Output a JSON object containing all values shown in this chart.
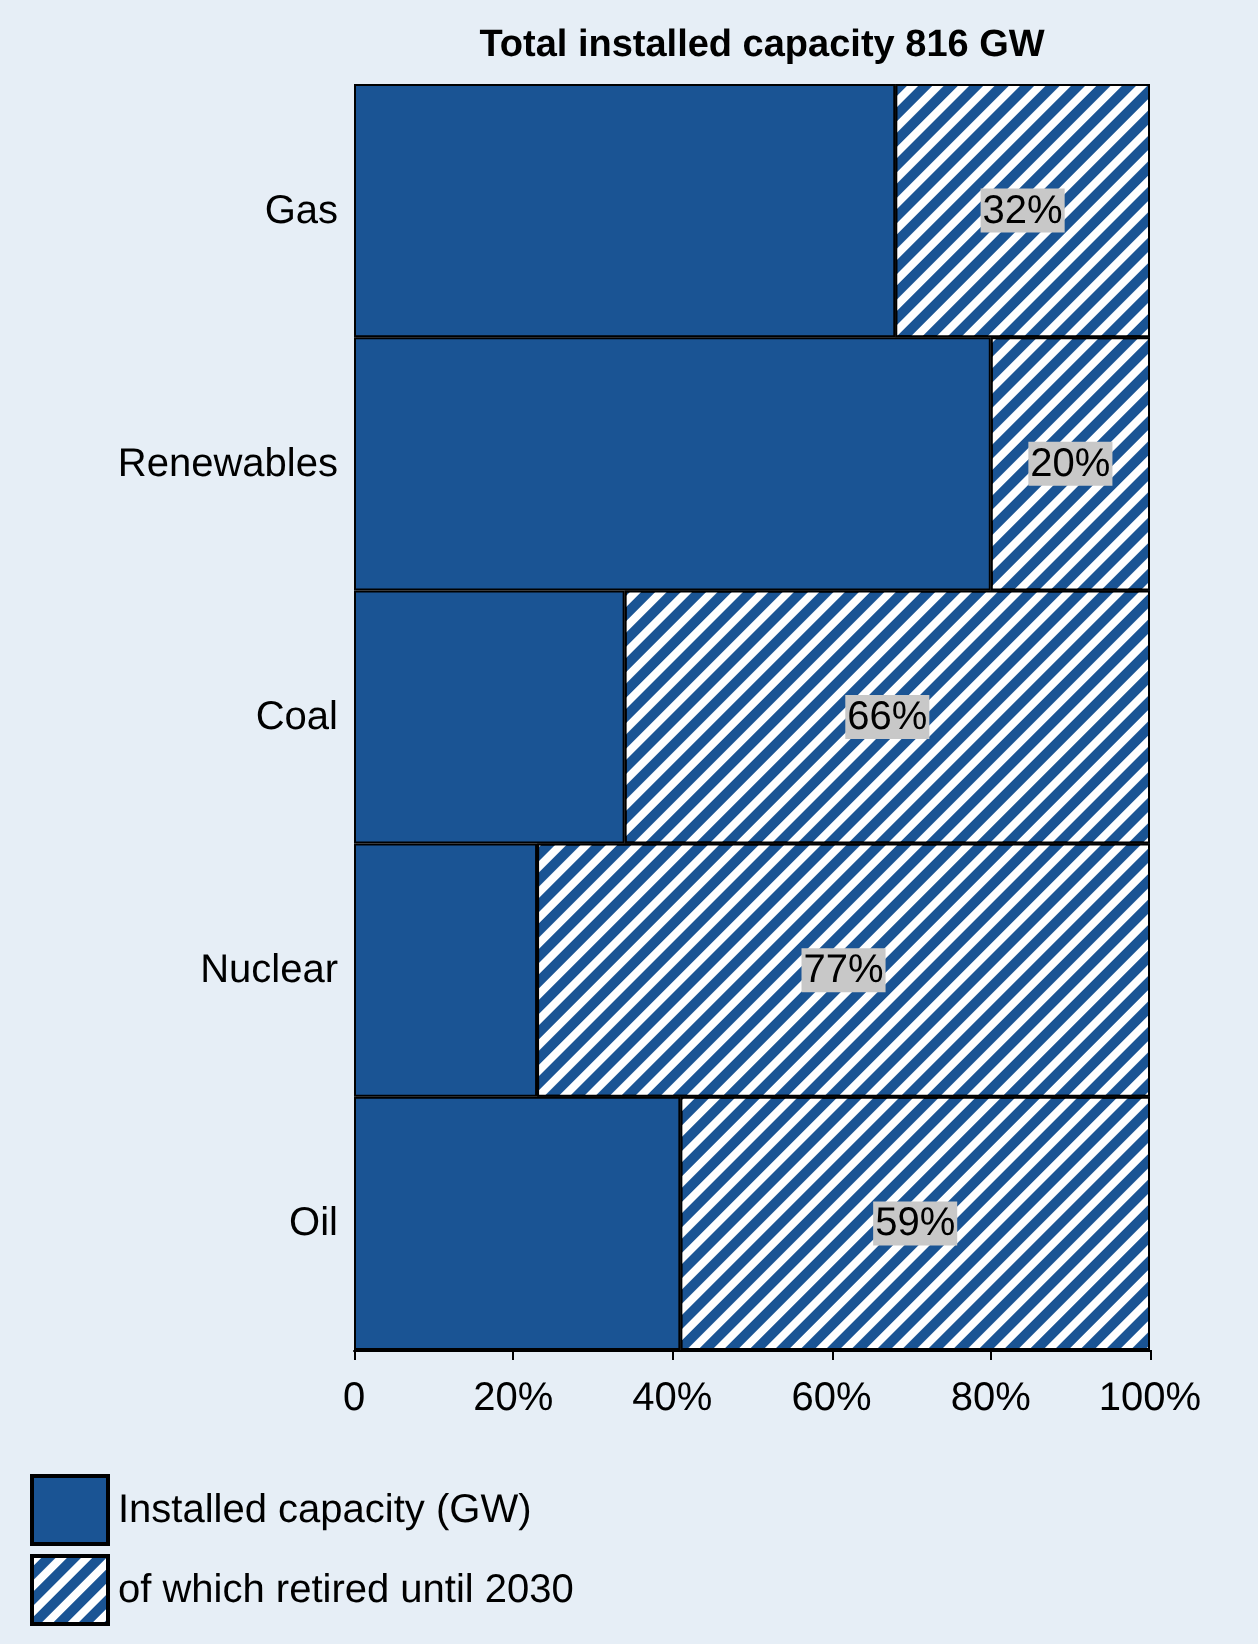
{
  "chart_data": {
    "type": "bar",
    "orientation": "horizontal",
    "stacked": true,
    "title": "Total installed capacity 816 GW",
    "categories": [
      "Gas",
      "Renewables",
      "Coal",
      "Nuclear",
      "Oil"
    ],
    "series": [
      {
        "name": "Installed capacity (GW)",
        "color": "#1a5494",
        "values": [
          68,
          80,
          34,
          23,
          41
        ]
      },
      {
        "name": "of which retired until 2030",
        "color": "#1a5494",
        "values": [
          32,
          20,
          66,
          77,
          59
        ],
        "value_labels": [
          "32%",
          "20%",
          "66%",
          "77%",
          "59%"
        ]
      }
    ],
    "xlim": [
      0,
      100
    ],
    "xticks": [
      0,
      {
        "value": 20,
        "label": "20%"
      },
      {
        "value": 40,
        "label": "40%"
      },
      {
        "value": 60,
        "label": "60%"
      },
      {
        "value": 80,
        "label": "80%"
      },
      {
        "value": 100,
        "label": "100%"
      }
    ],
    "grid": false,
    "legend": "bottom left"
  }
}
